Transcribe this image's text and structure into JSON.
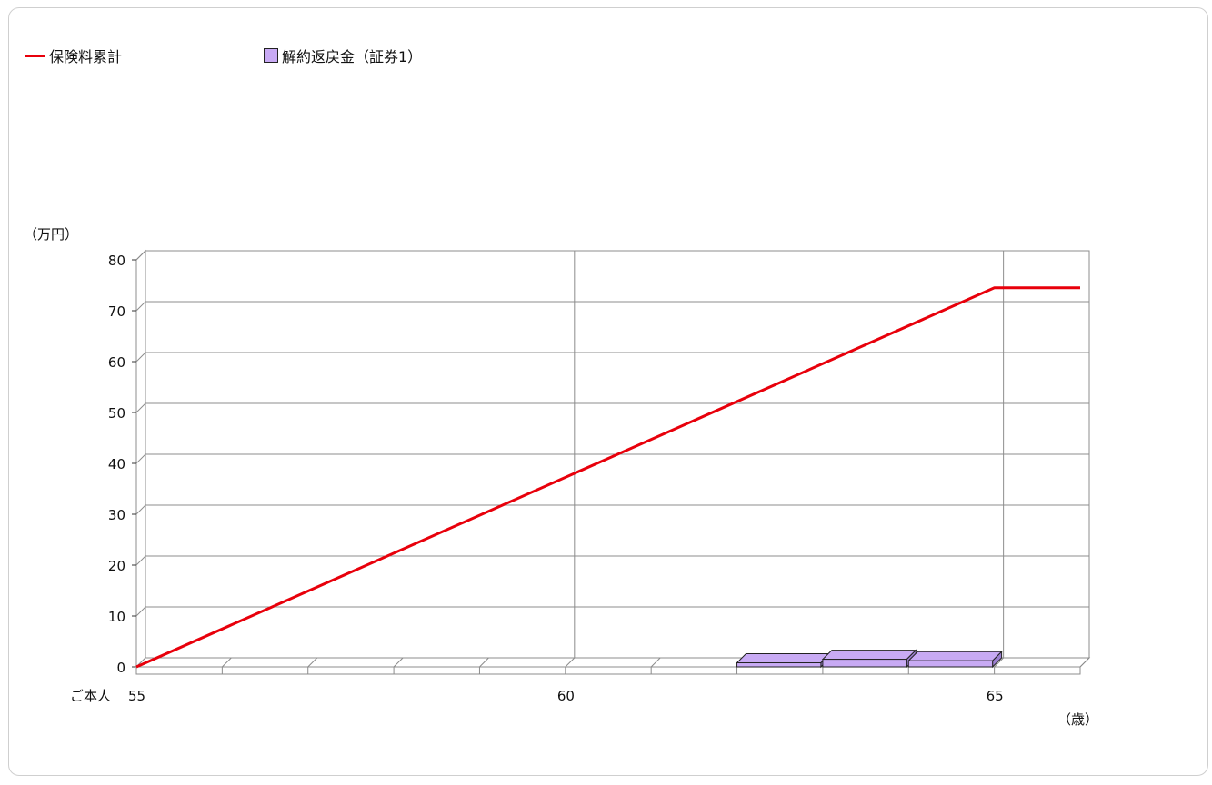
{
  "chart_data": {
    "type": "line",
    "legend": {
      "placement": "top-left",
      "line_label": "保険料累計",
      "bar_label": "解約返戻金（証券1）"
    },
    "ylabel": "（万円）",
    "xlabel": "（歳）",
    "row_label": "ご本人",
    "ylim": [
      0,
      80
    ],
    "y_ticks": [
      0,
      10,
      20,
      30,
      40,
      50,
      60,
      70,
      80
    ],
    "xlim": [
      55,
      66
    ],
    "x_tick_labels": [
      {
        "x": 55,
        "label": "55"
      },
      {
        "x": 60,
        "label": "60"
      },
      {
        "x": 65,
        "label": "65"
      }
    ],
    "series": [
      {
        "name": "保険料累計",
        "kind": "line",
        "color": "#e8000b",
        "points": [
          [
            55,
            0
          ],
          [
            65,
            74.5
          ],
          [
            66,
            74.5
          ]
        ]
      },
      {
        "name": "解約返戻金（証券1）",
        "kind": "bar",
        "color": "#c8aaf4",
        "x": [
          62,
          63,
          64
        ],
        "values": [
          0.8,
          1.5,
          1.2
        ]
      }
    ],
    "grid": true
  },
  "colors": {
    "line": "#e8000b",
    "bar": "#c8aaf4",
    "grid": "#8c8c8c"
  }
}
